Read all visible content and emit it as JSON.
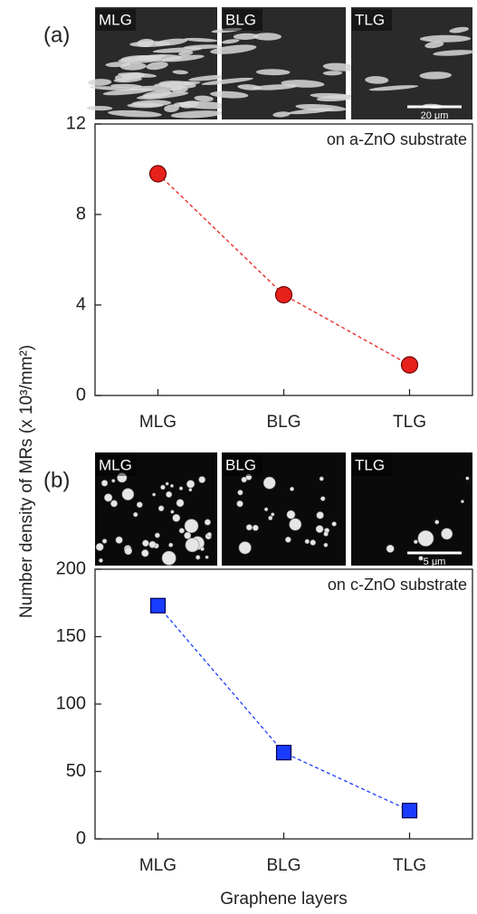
{
  "chart_data": [
    {
      "type": "line",
      "label": "(a)",
      "insets": [
        "MLG",
        "BLG",
        "TLG"
      ],
      "scale_bar": "20 μm",
      "annotation": "on a-ZnO substrate",
      "ylabel": "Number density of MRs (x 10³/mm²)",
      "categories": [
        "MLG",
        "BLG",
        "TLG"
      ],
      "values": [
        9.8,
        4.45,
        1.35
      ],
      "color": "#e8201c",
      "marker": "circle",
      "line_style": "dashed",
      "ylim": [
        0,
        12
      ],
      "yticks": [
        0,
        4,
        8,
        12
      ],
      "grid": false
    },
    {
      "type": "line",
      "label": "(b)",
      "insets": [
        "MLG",
        "BLG",
        "TLG"
      ],
      "scale_bar": "5 μm",
      "annotation": "on c-ZnO substrate",
      "xlabel": "Graphene layers",
      "categories": [
        "MLG",
        "BLG",
        "TLG"
      ],
      "values": [
        173,
        64,
        21
      ],
      "color": "#1a3cff",
      "marker": "square",
      "line_style": "dashed",
      "ylim": [
        0,
        200
      ],
      "yticks": [
        0,
        50,
        100,
        150,
        200
      ],
      "grid": false
    }
  ]
}
